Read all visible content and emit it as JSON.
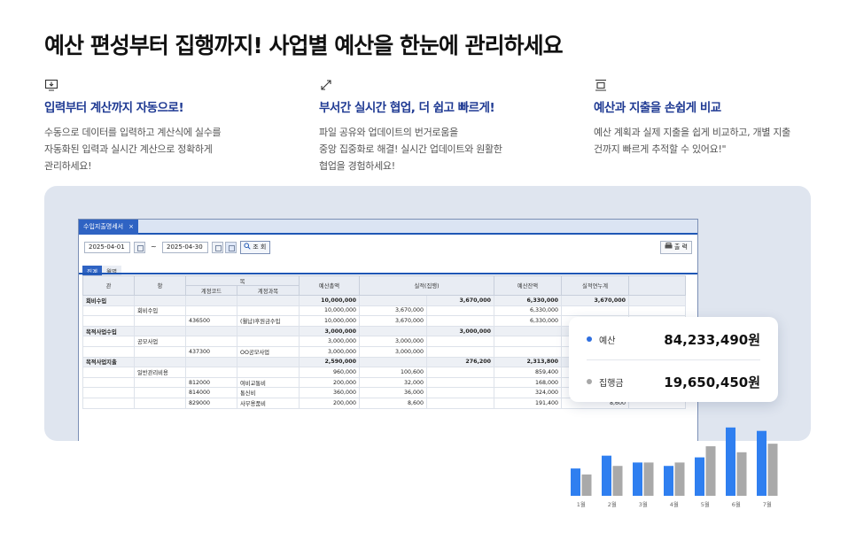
{
  "headline": "예산 편성부터 집행까지! 사업별 예산을 한눈에 관리하세요",
  "features": [
    {
      "icon": "monitor-download-icon",
      "title": "입력부터 계산까지 자동으로!",
      "lines": [
        "수동으로 데이터를 입력하고 계산식에 실수를",
        "자동화된 입력과 실시간 계산으로 정확하게",
        "관리하세요!"
      ]
    },
    {
      "icon": "sync-arrows-icon",
      "title": "부서간 실시간 협업, 더 쉽고 빠르게!",
      "lines": [
        "파일 공유와 업데이트의 번거로움을",
        "중앙 집중화로 해결! 실시간 업데이트와 원활한",
        "협업을 경험하세요!"
      ]
    },
    {
      "icon": "compare-screen-icon",
      "title": "예산과 지출을 손쉽게 비교",
      "lines": [
        "예산 계획과 실제 지출을 쉽게 비교하고, 개별 지출",
        "건까지 빠르게 추적할 수 있어요!\""
      ]
    }
  ],
  "window": {
    "tab_label": "수입지출명세서",
    "tab_close": "×",
    "date_from": "2025-04-01",
    "tilde": "~",
    "date_to": "2025-04-30",
    "search_label": "조 회",
    "print_label": "출 력",
    "subtabs": [
      "집계",
      "월별"
    ],
    "headers": {
      "gwan": "관",
      "hang": "항",
      "mok": "목",
      "account_code": "계정코드",
      "account_name": "계정과목",
      "budget_total": "예산총액",
      "actual": "실적(집행)",
      "budget_balance": "예산잔액",
      "actual_cumulative": "실적연누계"
    },
    "rows": [
      {
        "type": "sub",
        "gwan": "회비수입",
        "hang": "",
        "code": "",
        "name": "",
        "budget": "10,000,000",
        "actual1": "",
        "actual2": "3,670,000",
        "balance": "6,330,000",
        "cum": "3,670,000"
      },
      {
        "type": "row",
        "gwan": "",
        "hang": "회비수입",
        "code": "",
        "name": "",
        "budget": "10,000,000",
        "actual1": "3,670,000",
        "actual2": "",
        "balance": "6,330,000",
        "cum": ""
      },
      {
        "type": "row",
        "gwan": "",
        "hang": "",
        "code": "436500",
        "name": "(월납)후원금수입",
        "budget": "10,000,000",
        "actual1": "3,670,000",
        "actual2": "",
        "balance": "6,330,000",
        "cum": ""
      },
      {
        "type": "sub",
        "gwan": "목적사업수입",
        "hang": "",
        "code": "",
        "name": "",
        "budget": "3,000,000",
        "actual1": "",
        "actual2": "3,000,000",
        "balance": "",
        "cum": ""
      },
      {
        "type": "row",
        "gwan": "",
        "hang": "공모사업",
        "code": "",
        "name": "",
        "budget": "3,000,000",
        "actual1": "3,000,000",
        "actual2": "",
        "balance": "",
        "cum": ""
      },
      {
        "type": "row",
        "gwan": "",
        "hang": "",
        "code": "437300",
        "name": "OO공모사업",
        "budget": "3,000,000",
        "actual1": "3,000,000",
        "actual2": "",
        "balance": "",
        "cum": ""
      },
      {
        "type": "sub",
        "gwan": "목적사업지출",
        "hang": "",
        "code": "",
        "name": "",
        "budget": "2,590,000",
        "actual1": "",
        "actual2": "276,200",
        "balance": "2,313,800",
        "cum": ""
      },
      {
        "type": "row",
        "gwan": "",
        "hang": "일반관리비용",
        "code": "",
        "name": "",
        "budget": "960,000",
        "actual1": "100,600",
        "actual2": "",
        "balance": "859,400",
        "cum": ""
      },
      {
        "type": "row",
        "gwan": "",
        "hang": "",
        "code": "812000",
        "name": "여비교통비",
        "budget": "200,000",
        "actual1": "32,000",
        "actual2": "",
        "balance": "168,000",
        "cum": "32,000"
      },
      {
        "type": "row",
        "gwan": "",
        "hang": "",
        "code": "814000",
        "name": "통신비",
        "budget": "360,000",
        "actual1": "36,000",
        "actual2": "",
        "balance": "324,000",
        "cum": "36,000"
      },
      {
        "type": "row",
        "gwan": "",
        "hang": "",
        "code": "829000",
        "name": "사무용품비",
        "budget": "200,000",
        "actual1": "8,600",
        "actual2": "",
        "balance": "191,400",
        "cum": "8,600"
      }
    ]
  },
  "summary_card": {
    "budget_label": "예산",
    "budget_value": "84,233,490원",
    "budget_color": "#2f6fe0",
    "exec_label": "집행금",
    "exec_value": "19,650,450원",
    "exec_color": "#a8a8a8"
  },
  "chart_data": {
    "type": "bar",
    "categories": [
      "1월",
      "2월",
      "3월",
      "4월",
      "5월",
      "6월",
      "7월"
    ],
    "series": [
      {
        "values": [
          32,
          47,
          39,
          35,
          45,
          80,
          76
        ],
        "color": "#2f7ff0"
      },
      {
        "values": [
          25,
          35,
          39,
          39,
          58,
          51,
          61
        ],
        "color": "#a9a9a9"
      }
    ],
    "ylim": [
      0,
      85
    ]
  }
}
